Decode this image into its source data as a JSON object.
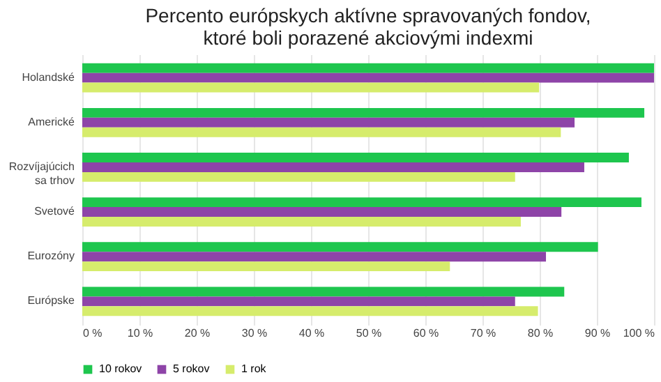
{
  "chart_data": {
    "type": "bar",
    "orientation": "horizontal",
    "title": "Percento európskych aktívne spravovaných fondov, ktoré boli porazené akciovými indexmi",
    "categories": [
      "Holandské",
      "Americké",
      "Rozvíjajúcich sa trhov",
      "Svetové",
      "Eurozóny",
      "Európske"
    ],
    "series": [
      {
        "name": "10 rokov",
        "color": "#1ec64e",
        "values": [
          100,
          98.3,
          95.6,
          97.8,
          90.2,
          84.3
        ]
      },
      {
        "name": "5 rokov",
        "color": "#8e44a8",
        "values": [
          100,
          86.1,
          87.8,
          83.8,
          81.1,
          75.7
        ]
      },
      {
        "name": "1 rok",
        "color": "#d6ec6c",
        "values": [
          79.9,
          83.7,
          75.7,
          76.7,
          64.3,
          79.7
        ]
      }
    ],
    "xlim": [
      0,
      100
    ],
    "xticks": [
      {
        "value": 0,
        "label": "0 %"
      },
      {
        "value": 10,
        "label": "10 %"
      },
      {
        "value": 20,
        "label": "20 %"
      },
      {
        "value": 30,
        "label": "30 %"
      },
      {
        "value": 40,
        "label": "40 %"
      },
      {
        "value": 50,
        "label": "50 %"
      },
      {
        "value": 60,
        "label": "60 %"
      },
      {
        "value": 70,
        "label": "70 %"
      },
      {
        "value": 80,
        "label": "80 %"
      },
      {
        "value": 90,
        "label": "90 %"
      },
      {
        "value": 100,
        "label": "100 %"
      }
    ],
    "grid": "x",
    "legend": "bottom"
  }
}
